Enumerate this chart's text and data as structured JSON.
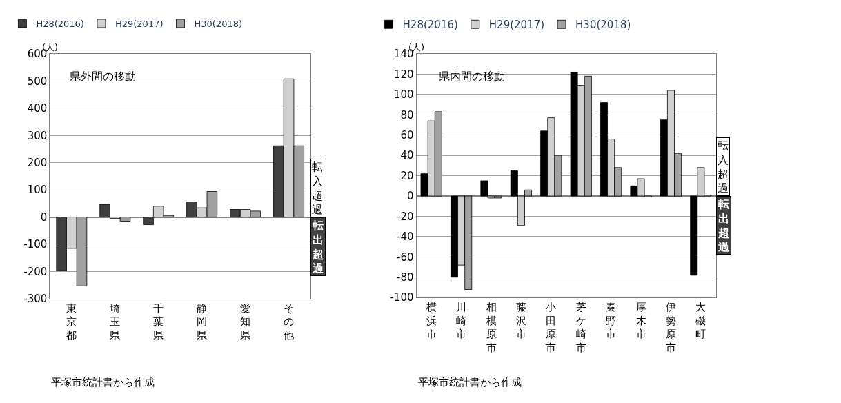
{
  "chart_data": [
    {
      "type": "bar",
      "title": "県外間の移動",
      "ylabel": "(人)",
      "categories": [
        "東京都",
        "埼玉県",
        "千葉県",
        "静岡県",
        "愛知県",
        "その他"
      ],
      "series": [
        {
          "name": "H28(2016)",
          "color": "#404040",
          "values": [
            -197,
            47,
            -28,
            56,
            28,
            262
          ]
        },
        {
          "name": "H29(2017)",
          "color": "#d0d0d0",
          "values": [
            -115,
            -5,
            40,
            34,
            28,
            508
          ]
        },
        {
          "name": "H30(2018)",
          "color": "#a0a0a0",
          "values": [
            -253,
            -15,
            6,
            94,
            22,
            262
          ]
        }
      ],
      "ylim": [
        -300,
        600
      ],
      "yticks": [
        -300,
        -200,
        -100,
        0,
        100,
        200,
        300,
        400,
        500,
        600
      ],
      "grid": "y",
      "legend": "top",
      "annotations": [
        "転入超過",
        "転出超過",
        "平塚市統計書から作成"
      ]
    },
    {
      "type": "bar",
      "title": "県内間の移動",
      "ylabel": "(人)",
      "categories": [
        "横浜市",
        "川崎市",
        "相模原市",
        "藤沢市",
        "小田原市",
        "茅ケ崎市",
        "秦野市",
        "厚木市",
        "伊勢原市",
        "大磯町"
      ],
      "series": [
        {
          "name": "H28(2016)",
          "color": "#000000",
          "values": [
            22,
            -80,
            15,
            25,
            64,
            122,
            92,
            10,
            75,
            -78
          ]
        },
        {
          "name": "H29(2017)",
          "color": "#d0d0d0",
          "values": [
            74,
            -68,
            -2,
            -29,
            77,
            109,
            56,
            17,
            104,
            28
          ]
        },
        {
          "name": "H30(2018)",
          "color": "#a0a0a0",
          "values": [
            83,
            -92,
            -2,
            6,
            40,
            118,
            28,
            -1,
            42,
            1
          ]
        }
      ],
      "ylim": [
        -100,
        140
      ],
      "yticks": [
        -100,
        -80,
        -60,
        -40,
        -20,
        0,
        20,
        40,
        60,
        80,
        100,
        120,
        140
      ],
      "grid": "y",
      "legend": "top",
      "annotations": [
        "転入超過",
        "転出超過",
        "平塚市統計書から作成"
      ]
    }
  ]
}
